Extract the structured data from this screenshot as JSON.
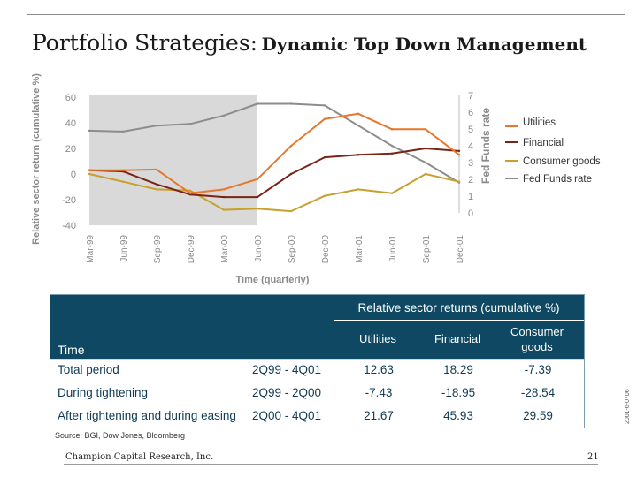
{
  "title": {
    "main": "Portfolio Strategies:",
    "sub": "Dynamic Top Down Management"
  },
  "chart_data": {
    "type": "line",
    "categories": [
      "Mar-99",
      "Jun-99",
      "Sep-99",
      "Dec-99",
      "Mar-00",
      "Jun-00",
      "Sep-00",
      "Dec-00",
      "Mar-01",
      "Jun-01",
      "Sep-01",
      "Dec-01"
    ],
    "xlabel": "Time (quarterly)",
    "ylabel": "Relative sector return (cumulative %)",
    "y2label": "Fed Funds rate",
    "ylim": [
      -40,
      60
    ],
    "yticks": [
      "60",
      "40",
      "20",
      "0",
      "-20",
      "-40"
    ],
    "y2lim": [
      0,
      7
    ],
    "y2ticks": [
      "7",
      "6",
      "5",
      "4",
      "3",
      "2",
      "1",
      "0"
    ],
    "shaded_region": [
      "Mar-99",
      "Jun-00"
    ],
    "legend_position": "right",
    "series": [
      {
        "name": "Utilities",
        "axis": "left",
        "color": "#e8762b",
        "values": [
          3,
          3,
          3.5,
          -15,
          -12,
          -4,
          22,
          43,
          47,
          35,
          35,
          15
        ]
      },
      {
        "name": "Financial",
        "axis": "left",
        "color": "#7a2418",
        "values": [
          3,
          2,
          -8,
          -16,
          -18,
          -18,
          0,
          13,
          15,
          16,
          20,
          18
        ]
      },
      {
        "name": "Consumer goods",
        "axis": "left",
        "color": "#c8a030",
        "values": [
          0,
          -6,
          -12,
          -13,
          -28,
          -27,
          -29,
          -17,
          -12,
          -15,
          0,
          -6
        ]
      },
      {
        "name": "Fed Funds rate",
        "axis": "right",
        "color": "#8c8c8c",
        "values": [
          4.9,
          4.85,
          5.2,
          5.3,
          5.8,
          6.5,
          6.5,
          6.4,
          5.2,
          4.0,
          3.0,
          1.8
        ]
      }
    ]
  },
  "table": {
    "group_header": "Relative sector returns (cumulative %)",
    "col_time": "Time",
    "col_utilities": "Utilities",
    "col_financial": "Financial",
    "col_consumer": "Consumer goods",
    "rows": [
      {
        "label": "Total period",
        "range": "2Q99 - 4Q01",
        "utilities": "12.63",
        "financial": "18.29",
        "consumer": "-7.39"
      },
      {
        "label": "During tightening",
        "range": "2Q99 - 2Q00",
        "utilities": "-7.43",
        "financial": "-18.95",
        "consumer": "-28.54"
      },
      {
        "label": "After tightening and during easing",
        "range": "2Q00 - 4Q01",
        "utilities": "21.67",
        "financial": "45.93",
        "consumer": "29.59"
      }
    ]
  },
  "source": "Source: BGI, Dow Jones, Bloomberg",
  "footer": {
    "company": "Champion Capital Research, Inc.",
    "page": "21",
    "code": "2001-6-0706"
  }
}
